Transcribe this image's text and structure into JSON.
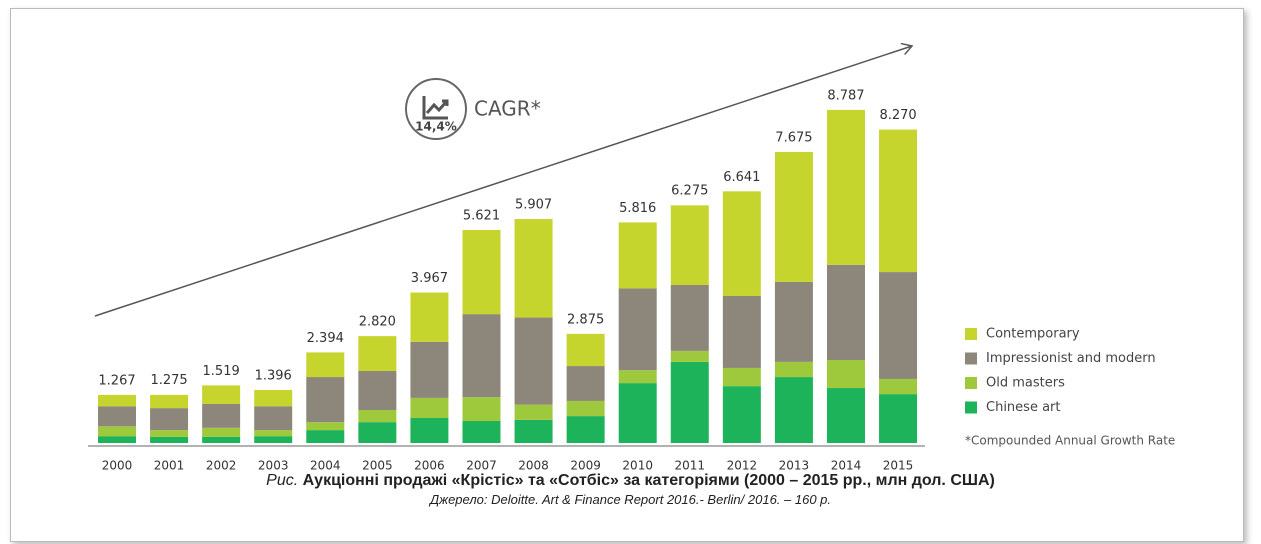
{
  "chart_data": {
    "type": "stacked-bar",
    "categories": [
      "2000",
      "2001",
      "2002",
      "2003",
      "2004",
      "2005",
      "2006",
      "2007",
      "2008",
      "2009",
      "2010",
      "2011",
      "2012",
      "2013",
      "2014",
      "2015"
    ],
    "series": [
      {
        "name": "Contemporary",
        "color": "#c5d52d",
        "values": [
          0.3,
          0.35,
          0.49,
          0.43,
          0.65,
          0.92,
          1.3,
          2.22,
          2.6,
          0.85,
          1.74,
          2.1,
          2.76,
          3.43,
          4.09,
          3.76
        ]
      },
      {
        "name": "Impressionist and modern",
        "color": "#8c867b",
        "values": [
          0.53,
          0.58,
          0.63,
          0.63,
          1.19,
          1.03,
          1.48,
          2.19,
          2.3,
          0.92,
          2.16,
          1.74,
          1.9,
          2.11,
          2.51,
          2.82
        ]
      },
      {
        "name": "Old masters",
        "color": "#9ec93c",
        "values": [
          0.26,
          0.18,
          0.24,
          0.16,
          0.21,
          0.32,
          0.53,
          0.63,
          0.4,
          0.4,
          0.34,
          0.29,
          0.48,
          0.4,
          0.74,
          0.4
        ]
      },
      {
        "name": "Chinese art",
        "color": "#1db35a",
        "values": [
          0.18,
          0.16,
          0.16,
          0.18,
          0.34,
          0.55,
          0.66,
          0.58,
          0.61,
          0.71,
          1.58,
          2.14,
          1.5,
          1.74,
          1.45,
          1.29
        ]
      }
    ],
    "totals": {
      "values": [
        1.267,
        1.275,
        1.519,
        1.396,
        2.394,
        2.82,
        3.967,
        5.621,
        5.907,
        2.875,
        5.816,
        6.275,
        6.641,
        7.675,
        8.787,
        8.27
      ],
      "value_labels": [
        "1.267",
        "1.275",
        "1.519",
        "1.396",
        "2.394",
        "2.820",
        "3.967",
        "5.621",
        "5.907",
        "2.875",
        "5.816",
        "6.275",
        "6.641",
        "7.675",
        "8.787",
        "8.270"
      ]
    },
    "annotation": {
      "value_label": "14,4%",
      "text": "CAGR*"
    },
    "footnote": "*Compounded Annual Growth Rate"
  },
  "caption": {
    "prefix": "Рис.",
    "title": "Аукціонні продажі «Крістіс» та «Сотбіс» за категоріями (2000 – 2015 рр., млн дол. США)",
    "source": "Джерело: Deloitte. Art & Finance Report 2016.- Berlin/ 2016. – 160 p."
  }
}
